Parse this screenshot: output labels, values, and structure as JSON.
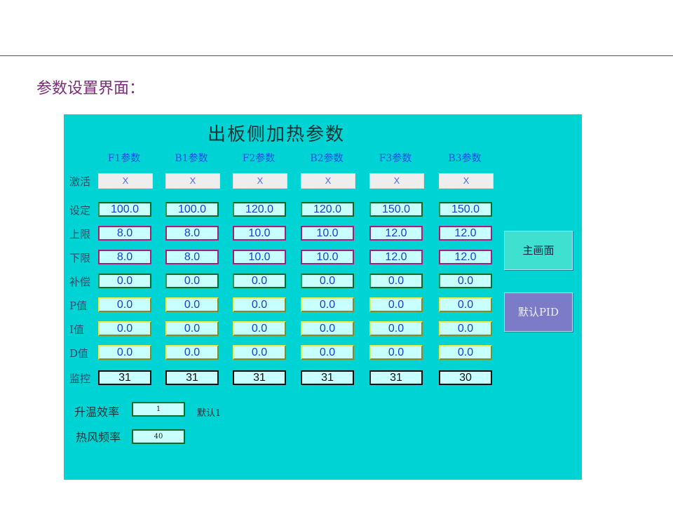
{
  "slide_title": "参数设置界面：",
  "panel": {
    "title": "出板侧加热参数",
    "columns": [
      "F1参数",
      "B1参数",
      "F2参数",
      "B2参数",
      "F3参数",
      "B3参数"
    ],
    "rows": [
      {
        "label": "激活",
        "style": "act",
        "values": [
          "X",
          "X",
          "X",
          "X",
          "X",
          "X"
        ]
      },
      {
        "label": "设定",
        "style": "b-green",
        "values": [
          "100.0",
          "100.0",
          "120.0",
          "120.0",
          "150.0",
          "150.0"
        ]
      },
      {
        "label": "上限",
        "style": "b-pink",
        "values": [
          "8.0",
          "8.0",
          "10.0",
          "10.0",
          "12.0",
          "12.0"
        ]
      },
      {
        "label": "下限",
        "style": "b-pink",
        "values": [
          "8.0",
          "8.0",
          "10.0",
          "10.0",
          "12.0",
          "12.0"
        ]
      },
      {
        "label": "补偿",
        "style": "b-green",
        "values": [
          "0.0",
          "0.0",
          "0.0",
          "0.0",
          "0.0",
          "0.0"
        ]
      },
      {
        "label": "P值",
        "style": "b-yel",
        "values": [
          "0.0",
          "0.0",
          "0.0",
          "0.0",
          "0.0",
          "0.0"
        ]
      },
      {
        "label": "I值",
        "style": "b-yel",
        "values": [
          "0.0",
          "0.0",
          "0.0",
          "0.0",
          "0.0",
          "0.0"
        ]
      },
      {
        "label": "D值",
        "style": "b-yel",
        "values": [
          "0.0",
          "0.0",
          "0.0",
          "0.0",
          "0.0",
          "0.0"
        ]
      },
      {
        "label": "监控",
        "style": "b-blk",
        "values": [
          "31",
          "31",
          "31",
          "31",
          "31",
          "30"
        ]
      }
    ],
    "main_button": "主画面",
    "pid_button": "默认PID",
    "heat_rate_label": "升温效率",
    "heat_rate_value": "1",
    "heat_rate_note": "默认1",
    "fan_freq_label": "热风频率",
    "fan_freq_value": "40"
  },
  "colors": {
    "panel": "#00d3d3",
    "main_button": "#40e0d0",
    "pid_button": "#7b7bc8"
  }
}
